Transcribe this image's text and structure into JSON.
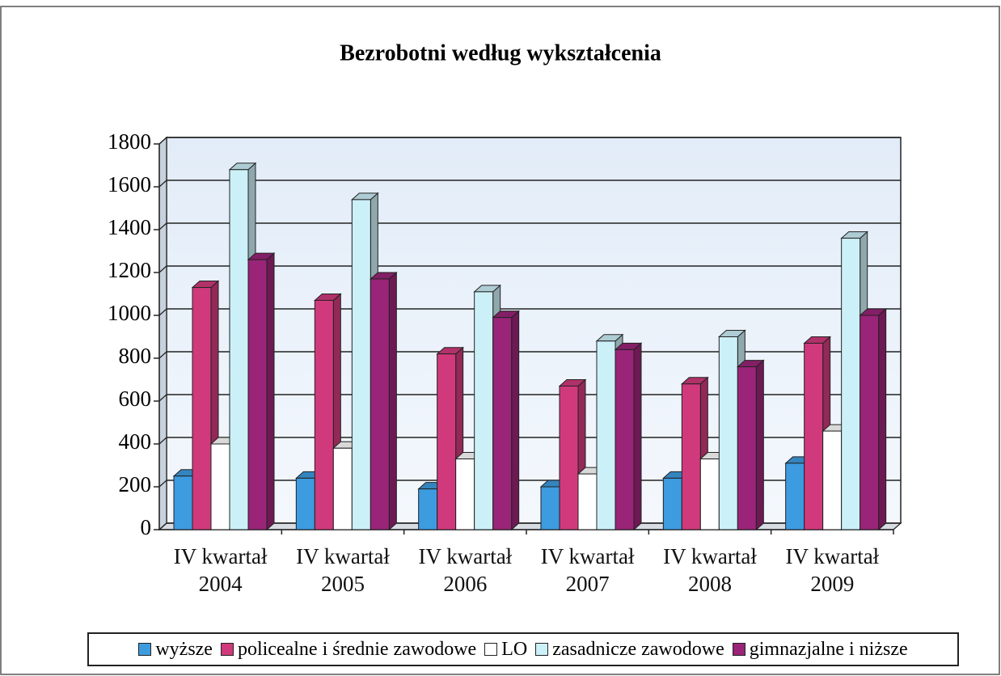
{
  "chart_data": {
    "type": "bar3d",
    "title": "Bezrobotni według wykształcenia",
    "categories": [
      "IV kwartał 2004",
      "IV kwartał 2005",
      "IV kwartał 2006",
      "IV kwartał 2007",
      "IV kwartał 2008",
      "IV kwartał 2009"
    ],
    "series": [
      {
        "name": "wyższe",
        "color": "#3d9be0",
        "values": [
          250,
          240,
          190,
          200,
          240,
          310
        ]
      },
      {
        "name": "policealne i średnie zawodowe",
        "color": "#d03a7c",
        "values": [
          1130,
          1070,
          820,
          670,
          680,
          870
        ]
      },
      {
        "name": "LO",
        "color": "#ffffff",
        "values": [
          400,
          380,
          330,
          260,
          330,
          460
        ]
      },
      {
        "name": "zasadnicze zawodowe",
        "color": "#ccf0f8",
        "values": [
          1680,
          1540,
          1110,
          880,
          900,
          1360
        ]
      },
      {
        "name": "gimnazjalne i niższe",
        "color": "#9a2478",
        "values": [
          1260,
          1170,
          990,
          840,
          760,
          1000
        ]
      }
    ],
    "ylim": [
      0,
      1800
    ],
    "yticks": [
      0,
      200,
      400,
      600,
      800,
      1000,
      1200,
      1400,
      1600,
      1800
    ],
    "grid": true,
    "legend": "bottom"
  }
}
